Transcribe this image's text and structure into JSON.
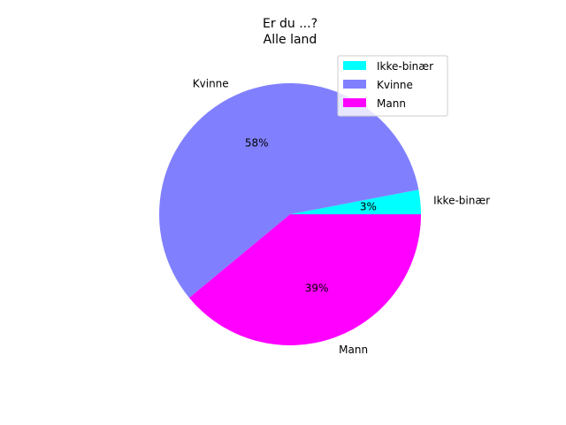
{
  "chart_data": {
    "type": "pie",
    "title": "Er du ...?",
    "subtitle": "Alle land",
    "slices": [
      {
        "label": "Ikke-binær",
        "value": 3,
        "pct_label": "3%",
        "color": "#00ffff"
      },
      {
        "label": "Kvinne",
        "value": 58,
        "pct_label": "58%",
        "color": "#8080ff"
      },
      {
        "label": "Mann",
        "value": 39,
        "pct_label": "39%",
        "color": "#ff00ff"
      }
    ],
    "legend": {
      "placement": "top-right"
    }
  }
}
